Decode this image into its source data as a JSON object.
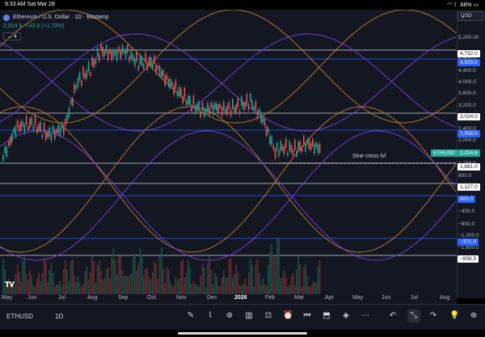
{
  "status": {
    "time": "9:33 AM",
    "date": "Sat Mar 28",
    "battery": "68%"
  },
  "legend": {
    "title": "Ethereum / U.S. Dollar · 1D · Bitstamp",
    "price": "2,024.6",
    "change": "+33.9 (+1.70%)",
    "indicators_count": "4"
  },
  "currency": "USD",
  "price_axis": [
    "5,200.00",
    "4,800.0",
    "4,400.0",
    "4,000.0",
    "3,600.0",
    "3,200.0",
    "2,800.0",
    "2,400.0",
    "2,000.0",
    "1,600.0",
    "1,200.0",
    "800.0",
    "400.0",
    "0.0",
    "−400.0",
    "−800.0",
    "−1,200.0",
    "−1,600.0"
  ],
  "price_tags": [
    {
      "value": "4,732.0",
      "style": "white"
    },
    {
      "value": "4,500.0",
      "style": "blue"
    },
    {
      "value": "3,024.0",
      "style": "white"
    },
    {
      "value": "2,558.0",
      "style": "blue"
    },
    {
      "value": "ETHUSD",
      "style": "green-name"
    },
    {
      "value": "2,024.6",
      "style": "green"
    },
    {
      "value": "1,681.0",
      "style": "white"
    },
    {
      "value": "1,127.0",
      "style": "white"
    },
    {
      "value": "800.0",
      "style": "blue"
    },
    {
      "value": "−371.0",
      "style": "blue"
    },
    {
      "value": "−858.5",
      "style": "white"
    }
  ],
  "annotation": "Sine cross lvl",
  "time_axis": [
    "May",
    "Jun",
    "Jul",
    "Aug",
    "Sep",
    "Oct",
    "Nov",
    "Dec",
    "2026",
    "Feb",
    "Mar",
    "Apr",
    "May",
    "Jun",
    "Jul",
    "Aug"
  ],
  "toolbar": {
    "symbol": "ETHUSD",
    "interval": "1D"
  },
  "colors": {
    "up": "#26a69a",
    "down": "#ef5350",
    "orange_wave": "#c77a2a",
    "purple_wave": "#7b3fe4",
    "blue_line": "#2962ff"
  }
}
